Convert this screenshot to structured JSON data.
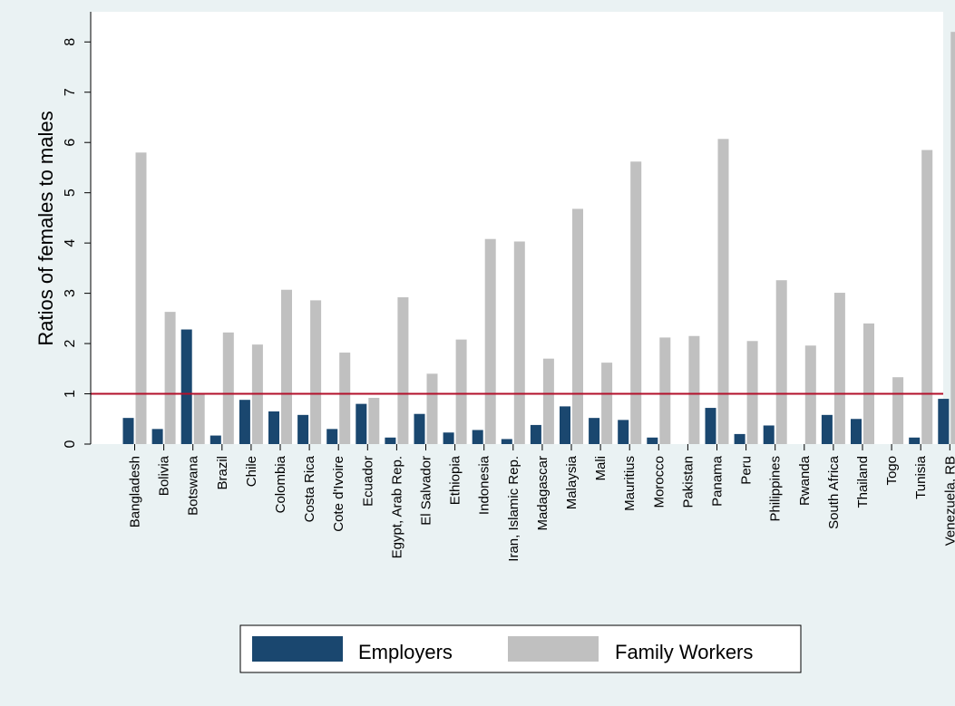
{
  "chart_data": {
    "type": "bar",
    "title": "",
    "xlabel": "",
    "ylabel": "Ratios of females to males",
    "ylim": [
      0,
      8.6
    ],
    "yticks": [
      0,
      1,
      2,
      3,
      4,
      5,
      6,
      7,
      8
    ],
    "grid": false,
    "reference_line": {
      "value": 1,
      "color": "#b3102b"
    },
    "legend_position": "bottom",
    "categories": [
      "Bangladesh",
      "Bolivia",
      "Botswana",
      "Brazil",
      "Chile",
      "Colombia",
      "Costa Rica",
      "Cote d'Ivoire",
      "Ecuador",
      "Egypt, Arab Rep.",
      "El Salvador",
      "Ethiopia",
      "Indonesia",
      "Iran, Islamic Rep.",
      "Madagascar",
      "Malaysia",
      "Mali",
      "Mauritius",
      "Morocco",
      "Pakistan",
      "Panama",
      "Peru",
      "Philippines",
      "Rwanda",
      "South Africa",
      "Thailand",
      "Togo",
      "Tunisia",
      "Venezuela, RB"
    ],
    "series": [
      {
        "name": "Employers",
        "color": "#1a476f",
        "values": [
          0.52,
          0.3,
          2.28,
          0.17,
          0.88,
          0.65,
          0.58,
          0.3,
          0.8,
          0.13,
          0.6,
          0.23,
          0.28,
          0.1,
          0.38,
          0.75,
          0.52,
          0.48,
          0.13,
          0.0,
          0.72,
          0.2,
          0.37,
          0.0,
          0.58,
          0.5,
          0.0,
          0.13,
          0.9
        ]
      },
      {
        "name": "Family Workers",
        "color": "#c0c0c0",
        "values": [
          5.8,
          2.63,
          1.0,
          2.22,
          1.98,
          3.07,
          2.86,
          1.82,
          0.92,
          2.92,
          1.4,
          2.08,
          4.08,
          4.03,
          1.7,
          4.68,
          1.62,
          5.62,
          2.12,
          2.15,
          6.07,
          2.05,
          3.26,
          1.96,
          3.01,
          2.4,
          1.33,
          5.85,
          8.2
        ]
      }
    ]
  }
}
